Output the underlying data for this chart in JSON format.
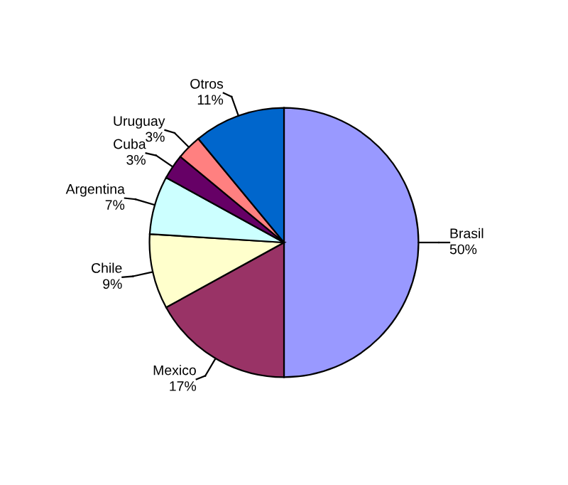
{
  "chart_data": {
    "type": "pie",
    "categories": [
      "Brasil",
      "Mexico",
      "Chile",
      "Argentina",
      "Cuba",
      "Uruguay",
      "Otros"
    ],
    "values": [
      50,
      17,
      9,
      7,
      3,
      3,
      11
    ],
    "value_labels": [
      "50%",
      "17%",
      "9%",
      "7%",
      "3%",
      "3%",
      "11%"
    ],
    "colors": [
      "#9999ff",
      "#993366",
      "#ffffcc",
      "#ccffff",
      "#660066",
      "#ff8080",
      "#0066cc"
    ]
  }
}
